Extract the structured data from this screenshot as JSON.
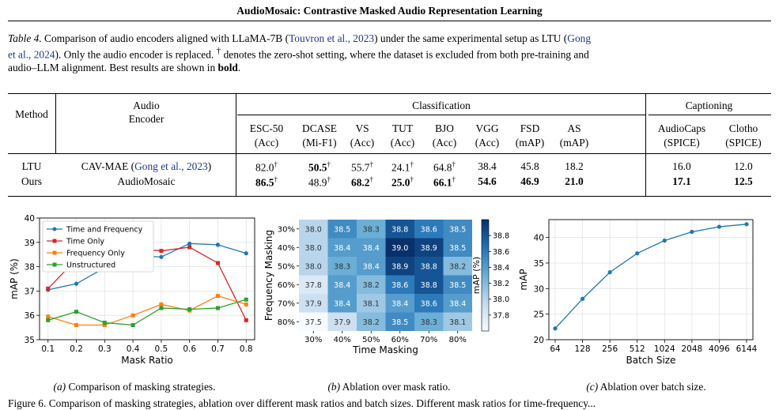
{
  "running_header": "AudioMosaic: Contrastive Masked Audio Representation Learning",
  "table_caption": {
    "label": "Table 4.",
    "text_1": " Comparison of audio encoders aligned with LLaMA-7B (",
    "cite_1": "Touvron et al., 2023",
    "text_2": ") under the same experimental setup as LTU (",
    "cite_2": "Gong",
    "cite_2b": "et al., 2024",
    "text_3": "). Only the audio encoder is replaced. ",
    "dagger": "†",
    "text_4": " denotes the zero-shot setting, where the dataset is excluded from both pre-training and",
    "text_5": "audio–LLM alignment. Best results are shown in ",
    "bold_word": "bold",
    "text_6": "."
  },
  "table": {
    "col_method": "Method",
    "col_encoder_1": "Audio",
    "col_encoder_2": "Encoder",
    "group_classification": "Classification",
    "group_captioning": "Captioning",
    "sub_headers": [
      {
        "name": "ESC-50",
        "metric": "(Acc)"
      },
      {
        "name": "DCASE",
        "metric": "(Mi-F1)"
      },
      {
        "name": "VS",
        "metric": "(Acc)"
      },
      {
        "name": "TUT",
        "metric": "(Acc)"
      },
      {
        "name": "BJO",
        "metric": "(Acc)"
      },
      {
        "name": "VGG",
        "metric": "(Acc)"
      },
      {
        "name": "FSD",
        "metric": "(mAP)"
      },
      {
        "name": "AS",
        "metric": "(mAP)"
      },
      {
        "name": "AudioCaps",
        "metric": "(SPICE)"
      },
      {
        "name": "Clotho",
        "metric": "(SPICE)"
      }
    ],
    "rows": [
      {
        "method": "LTU",
        "encoder": "CAV-MAE (",
        "encoder_cite": "Gong et al., 2023",
        "encoder_end": ")",
        "values": [
          "82.0",
          "50.5",
          "55.7",
          "24.1",
          "64.8",
          "38.4",
          "45.8",
          "18.2",
          "16.0",
          "12.0"
        ],
        "dagger": [
          true,
          true,
          true,
          true,
          true,
          false,
          false,
          false,
          false,
          false
        ],
        "bold": [
          false,
          true,
          false,
          false,
          false,
          false,
          false,
          false,
          false,
          false
        ]
      },
      {
        "method": "Ours",
        "encoder": "AudioMosaic",
        "encoder_cite": "",
        "encoder_end": "",
        "values": [
          "86.5",
          "48.9",
          "68.2",
          "25.0",
          "66.1",
          "54.6",
          "46.9",
          "21.0",
          "17.1",
          "12.5"
        ],
        "dagger": [
          true,
          true,
          true,
          true,
          true,
          false,
          false,
          false,
          false,
          false
        ],
        "bold": [
          true,
          false,
          true,
          true,
          true,
          true,
          true,
          true,
          true,
          true
        ]
      }
    ]
  },
  "chart_data": [
    {
      "type": "line",
      "xlabel": "Mask Ratio",
      "ylabel": "mAP (%)",
      "x": [
        0.1,
        0.2,
        0.3,
        0.4,
        0.5,
        0.6,
        0.7,
        0.8
      ],
      "xlim": [
        0.07,
        0.83
      ],
      "ylim": [
        35,
        40
      ],
      "yticks": [
        35,
        36,
        37,
        38,
        39,
        40
      ],
      "legend": "top-left",
      "grid": true,
      "series": [
        {
          "name": "Time and Frequency",
          "color": "#1f77b4",
          "values": [
            37.05,
            37.3,
            37.95,
            38.45,
            38.4,
            38.95,
            38.9,
            38.55
          ]
        },
        {
          "name": "Time Only",
          "color": "#d62728",
          "values": [
            37.1,
            38.3,
            38.5,
            38.75,
            38.65,
            38.8,
            38.15,
            35.8
          ]
        },
        {
          "name": "Frequency Only",
          "color": "#ff7f0e",
          "values": [
            35.95,
            35.6,
            35.6,
            36.0,
            36.45,
            36.2,
            36.8,
            36.45
          ]
        },
        {
          "name": "Unstructured",
          "color": "#2ca02c",
          "values": [
            35.8,
            36.15,
            35.7,
            35.6,
            36.3,
            36.25,
            36.3,
            36.65
          ]
        }
      ]
    },
    {
      "type": "heatmap",
      "xlabel": "Time Masking",
      "ylabel": "Frequency Masking",
      "colorbar_label": "mAP (%)",
      "x_categories": [
        "30%",
        "40%",
        "50%",
        "60%",
        "70%",
        "80%"
      ],
      "y_categories": [
        "30%",
        "40%",
        "50%",
        "60%",
        "70%",
        "80%"
      ],
      "values": [
        [
          38.0,
          38.5,
          38.3,
          38.8,
          38.6,
          38.5
        ],
        [
          38.0,
          38.4,
          38.4,
          39.0,
          38.9,
          38.5
        ],
        [
          38.0,
          38.3,
          38.4,
          38.9,
          38.8,
          38.2
        ],
        [
          37.8,
          38.4,
          38.2,
          38.6,
          38.8,
          38.5
        ],
        [
          37.9,
          38.4,
          38.1,
          38.4,
          38.6,
          38.4
        ],
        [
          37.5,
          37.9,
          38.2,
          38.5,
          38.3,
          38.1
        ]
      ],
      "color_range": [
        37.6,
        39.0
      ],
      "colorbar_ticks": [
        37.8,
        38.0,
        38.2,
        38.4,
        38.6,
        38.8
      ]
    },
    {
      "type": "line",
      "xlabel": "Batch Size",
      "ylabel": "mAP",
      "categories": [
        "64",
        "128",
        "256",
        "512",
        "1024",
        "2048",
        "4096",
        "6144"
      ],
      "ylim": [
        20,
        43.5
      ],
      "yticks": [
        20,
        25,
        30,
        35,
        40
      ],
      "grid": true,
      "series": [
        {
          "color": "#1f77b4",
          "values": [
            22.2,
            28.0,
            33.2,
            36.9,
            39.4,
            41.1,
            42.1,
            42.6
          ]
        }
      ]
    }
  ],
  "figure_captions": [
    {
      "label": "(a)",
      "text": " Comparison of masking strategies."
    },
    {
      "label": "(b)",
      "text": " Ablation over mask ratio."
    },
    {
      "label": "(c)",
      "text": " Ablation over batch size."
    }
  ],
  "bottom_text": "Figure 6. Comparison of masking strategies, ablation over different mask ratios and batch sizes. Different mask ratios for time-frequency..."
}
